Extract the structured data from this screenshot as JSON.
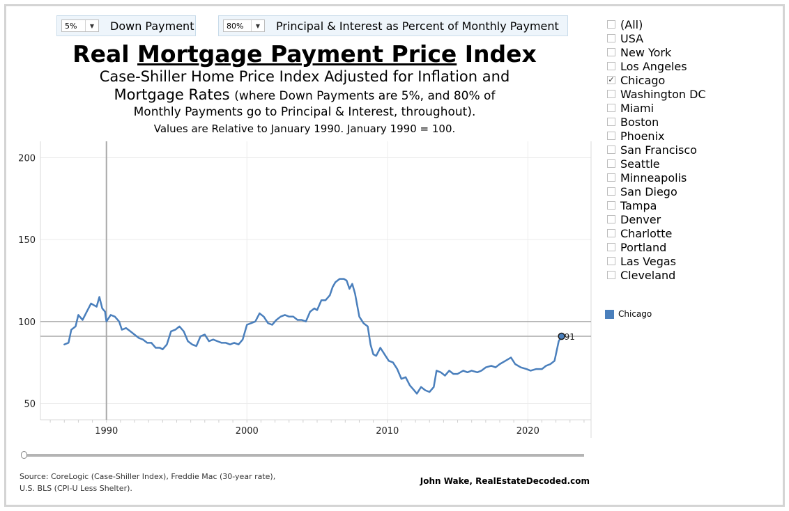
{
  "controls": {
    "down_payment": {
      "value": "5%",
      "label": "Down Payment"
    },
    "pi_percent": {
      "value": "80%",
      "label": "Principal & Interest as Percent of Monthly Payment"
    }
  },
  "titles": {
    "title_prefix": "Real",
    "title_underlined": "Mortgage Payment Price",
    "title_suffix": "Index",
    "subtitle_line1": "Case-Shiller Home Price Index Adjusted for Inflation and",
    "subtitle_line2": "Mortgage Rates",
    "subtitle_line2_small": "(where Down Payments are 5%, and 80% of",
    "subtitle_line3": "Monthly Payments go to Principal & Interest, throughout).",
    "subtitle_line4": "Values are Relative to January 1990. January 1990 = 100."
  },
  "filter": {
    "items": [
      {
        "label": "(All)",
        "checked": false
      },
      {
        "label": "USA",
        "checked": false
      },
      {
        "label": "New York",
        "checked": false
      },
      {
        "label": "Los Angeles",
        "checked": false
      },
      {
        "label": "Chicago",
        "checked": true
      },
      {
        "label": "Washington DC",
        "checked": false
      },
      {
        "label": "Miami",
        "checked": false
      },
      {
        "label": "Boston",
        "checked": false
      },
      {
        "label": "Phoenix",
        "checked": false
      },
      {
        "label": "San Francisco",
        "checked": false
      },
      {
        "label": "Seattle",
        "checked": false
      },
      {
        "label": "Minneapolis",
        "checked": false
      },
      {
        "label": "San Diego",
        "checked": false
      },
      {
        "label": "Tampa",
        "checked": false
      },
      {
        "label": "Denver",
        "checked": false
      },
      {
        "label": "Charlotte",
        "checked": false
      },
      {
        "label": "Portland",
        "checked": false
      },
      {
        "label": "Las Vegas",
        "checked": false
      },
      {
        "label": "Cleveland",
        "checked": false
      }
    ]
  },
  "legend": {
    "label": "Chicago",
    "color": "#4a7fbc"
  },
  "footer": {
    "source_line1": "Source: CoreLogic (Case-Shiller Index), Freddie Mac (30-year rate),",
    "source_line2": "U.S. BLS (CPI-U Less Shelter).",
    "credit": "John Wake, RealEstateDecoded.com"
  },
  "chart_data": {
    "type": "line",
    "xlim": [
      1985.3,
      2024.5
    ],
    "ylim": [
      40,
      210
    ],
    "yticks": [
      50,
      100,
      150,
      200
    ],
    "xticks": [
      1990,
      2000,
      2010,
      2020
    ],
    "grid": true,
    "reference_lines": {
      "y": [
        100,
        91
      ],
      "x": [
        1990
      ]
    },
    "end_label": "91",
    "series": [
      {
        "name": "Chicago",
        "color": "#4a7fbc",
        "points": [
          [
            1987.0,
            86
          ],
          [
            1987.3,
            87
          ],
          [
            1987.5,
            95
          ],
          [
            1987.8,
            97
          ],
          [
            1988.0,
            104
          ],
          [
            1988.3,
            101
          ],
          [
            1988.6,
            106
          ],
          [
            1988.9,
            111
          ],
          [
            1989.1,
            110
          ],
          [
            1989.3,
            109
          ],
          [
            1989.5,
            115
          ],
          [
            1989.7,
            108
          ],
          [
            1989.9,
            106
          ],
          [
            1990.0,
            100
          ],
          [
            1990.3,
            104
          ],
          [
            1990.6,
            103
          ],
          [
            1990.9,
            100
          ],
          [
            1991.1,
            95
          ],
          [
            1991.4,
            96
          ],
          [
            1991.7,
            94
          ],
          [
            1992.0,
            92
          ],
          [
            1992.3,
            90
          ],
          [
            1992.6,
            89
          ],
          [
            1992.9,
            87
          ],
          [
            1993.2,
            87
          ],
          [
            1993.5,
            84
          ],
          [
            1993.8,
            84
          ],
          [
            1994.0,
            83
          ],
          [
            1994.3,
            86
          ],
          [
            1994.6,
            94
          ],
          [
            1994.9,
            95
          ],
          [
            1995.2,
            97
          ],
          [
            1995.5,
            94
          ],
          [
            1995.8,
            88
          ],
          [
            1996.1,
            86
          ],
          [
            1996.4,
            85
          ],
          [
            1996.7,
            91
          ],
          [
            1997.0,
            92
          ],
          [
            1997.3,
            88
          ],
          [
            1997.6,
            89
          ],
          [
            1997.9,
            88
          ],
          [
            1998.2,
            87
          ],
          [
            1998.5,
            87
          ],
          [
            1998.8,
            86
          ],
          [
            1999.1,
            87
          ],
          [
            1999.4,
            86
          ],
          [
            1999.7,
            89
          ],
          [
            2000.0,
            98
          ],
          [
            2000.3,
            99
          ],
          [
            2000.6,
            100
          ],
          [
            2000.9,
            105
          ],
          [
            2001.2,
            103
          ],
          [
            2001.5,
            99
          ],
          [
            2001.8,
            98
          ],
          [
            2002.1,
            101
          ],
          [
            2002.4,
            103
          ],
          [
            2002.7,
            104
          ],
          [
            2003.0,
            103
          ],
          [
            2003.3,
            103
          ],
          [
            2003.6,
            101
          ],
          [
            2003.9,
            101
          ],
          [
            2004.2,
            100
          ],
          [
            2004.5,
            106
          ],
          [
            2004.8,
            108
          ],
          [
            2005.0,
            107
          ],
          [
            2005.3,
            113
          ],
          [
            2005.6,
            113
          ],
          [
            2005.9,
            116
          ],
          [
            2006.1,
            121
          ],
          [
            2006.3,
            124
          ],
          [
            2006.6,
            126
          ],
          [
            2006.9,
            126
          ],
          [
            2007.1,
            125
          ],
          [
            2007.3,
            120
          ],
          [
            2007.5,
            123
          ],
          [
            2007.7,
            117
          ],
          [
            2008.0,
            103
          ],
          [
            2008.3,
            99
          ],
          [
            2008.6,
            97
          ],
          [
            2008.8,
            86
          ],
          [
            2009.0,
            80
          ],
          [
            2009.2,
            79
          ],
          [
            2009.5,
            84
          ],
          [
            2009.8,
            80
          ],
          [
            2010.1,
            76
          ],
          [
            2010.4,
            75
          ],
          [
            2010.7,
            71
          ],
          [
            2011.0,
            65
          ],
          [
            2011.3,
            66
          ],
          [
            2011.6,
            61
          ],
          [
            2011.9,
            58
          ],
          [
            2012.1,
            56
          ],
          [
            2012.4,
            60
          ],
          [
            2012.7,
            58
          ],
          [
            2013.0,
            57
          ],
          [
            2013.3,
            60
          ],
          [
            2013.5,
            70
          ],
          [
            2013.8,
            69
          ],
          [
            2014.1,
            67
          ],
          [
            2014.4,
            70
          ],
          [
            2014.7,
            68
          ],
          [
            2015.0,
            68
          ],
          [
            2015.4,
            70
          ],
          [
            2015.7,
            69
          ],
          [
            2016.0,
            70
          ],
          [
            2016.4,
            69
          ],
          [
            2016.7,
            70
          ],
          [
            2017.0,
            72
          ],
          [
            2017.4,
            73
          ],
          [
            2017.7,
            72
          ],
          [
            2018.0,
            74
          ],
          [
            2018.4,
            76
          ],
          [
            2018.8,
            78
          ],
          [
            2019.1,
            74
          ],
          [
            2019.5,
            72
          ],
          [
            2019.9,
            71
          ],
          [
            2020.2,
            70
          ],
          [
            2020.6,
            71
          ],
          [
            2021.0,
            71
          ],
          [
            2021.3,
            73
          ],
          [
            2021.6,
            74
          ],
          [
            2021.9,
            76
          ],
          [
            2022.2,
            88
          ],
          [
            2022.4,
            91
          ]
        ]
      }
    ]
  }
}
